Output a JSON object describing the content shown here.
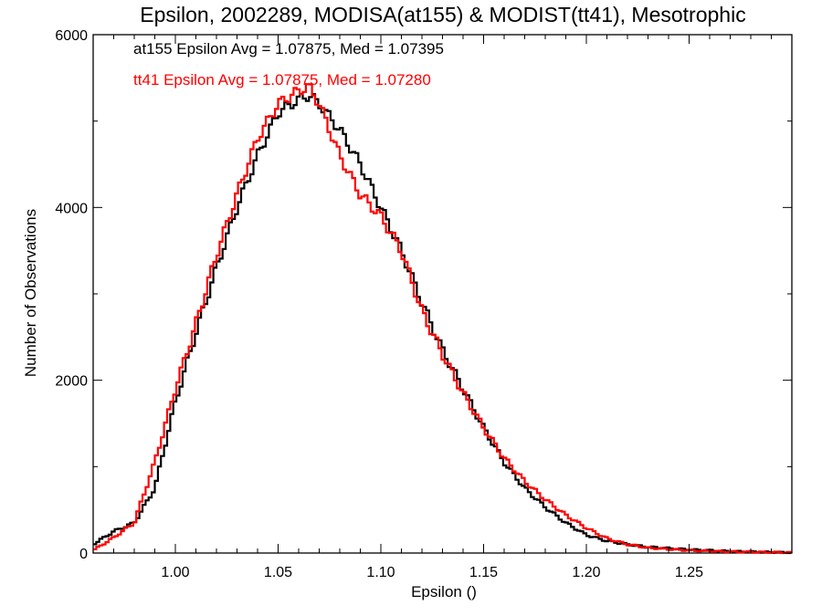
{
  "chart_data": {
    "type": "line",
    "title": "Epsilon, 2002289, MODISA(at155) & MODIST(tt41), Mesotrophic",
    "xlabel": "Epsilon ()",
    "ylabel": "Number of Observations",
    "xlim": [
      0.96,
      1.3
    ],
    "ylim": [
      0,
      6000
    ],
    "x_ticks": [
      1.0,
      1.05,
      1.1,
      1.15,
      1.2,
      1.25
    ],
    "x_tick_labels": [
      "1.00",
      "1.05",
      "1.10",
      "1.15",
      "1.20",
      "1.25"
    ],
    "y_ticks": [
      0,
      2000,
      4000,
      6000
    ],
    "y_tick_labels": [
      "0",
      "2000",
      "4000",
      "6000"
    ],
    "grid": false,
    "legend_position": "top-left",
    "annotations": [
      {
        "text": "at155 Epsilon Avg = 1.07875, Med = 1.07395",
        "color": "#000000"
      },
      {
        "text": "tt41 Epsilon Avg = 1.07875, Med = 1.07280",
        "color": "#ff0000"
      }
    ],
    "series": [
      {
        "color": "#000000",
        "x": [
          0.96,
          0.97,
          0.98,
          0.99,
          1.0,
          1.01,
          1.02,
          1.03,
          1.04,
          1.05,
          1.06,
          1.065,
          1.07,
          1.08,
          1.09,
          1.1,
          1.11,
          1.12,
          1.13,
          1.14,
          1.15,
          1.16,
          1.17,
          1.18,
          1.19,
          1.2,
          1.21,
          1.22,
          1.23,
          1.25,
          1.27,
          1.3
        ],
        "y": [
          100,
          250,
          350,
          750,
          1750,
          2550,
          3300,
          4000,
          4600,
          5100,
          5250,
          5300,
          5200,
          4900,
          4500,
          4000,
          3500,
          2900,
          2350,
          1900,
          1450,
          1050,
          750,
          530,
          350,
          210,
          140,
          100,
          70,
          40,
          20,
          5
        ]
      },
      {
        "color": "#ff0000",
        "x": [
          0.96,
          0.97,
          0.98,
          0.99,
          1.0,
          1.01,
          1.02,
          1.03,
          1.04,
          1.05,
          1.06,
          1.065,
          1.07,
          1.08,
          1.09,
          1.1,
          1.11,
          1.12,
          1.13,
          1.14,
          1.15,
          1.16,
          1.17,
          1.18,
          1.19,
          1.2,
          1.21,
          1.22,
          1.23,
          1.25,
          1.27,
          1.3
        ],
        "y": [
          30,
          180,
          350,
          1050,
          1900,
          2650,
          3450,
          4150,
          4800,
          5200,
          5350,
          5400,
          5200,
          4600,
          4150,
          3900,
          3500,
          2800,
          2300,
          1850,
          1450,
          1100,
          830,
          620,
          440,
          290,
          170,
          100,
          60,
          30,
          15,
          5
        ]
      }
    ]
  }
}
